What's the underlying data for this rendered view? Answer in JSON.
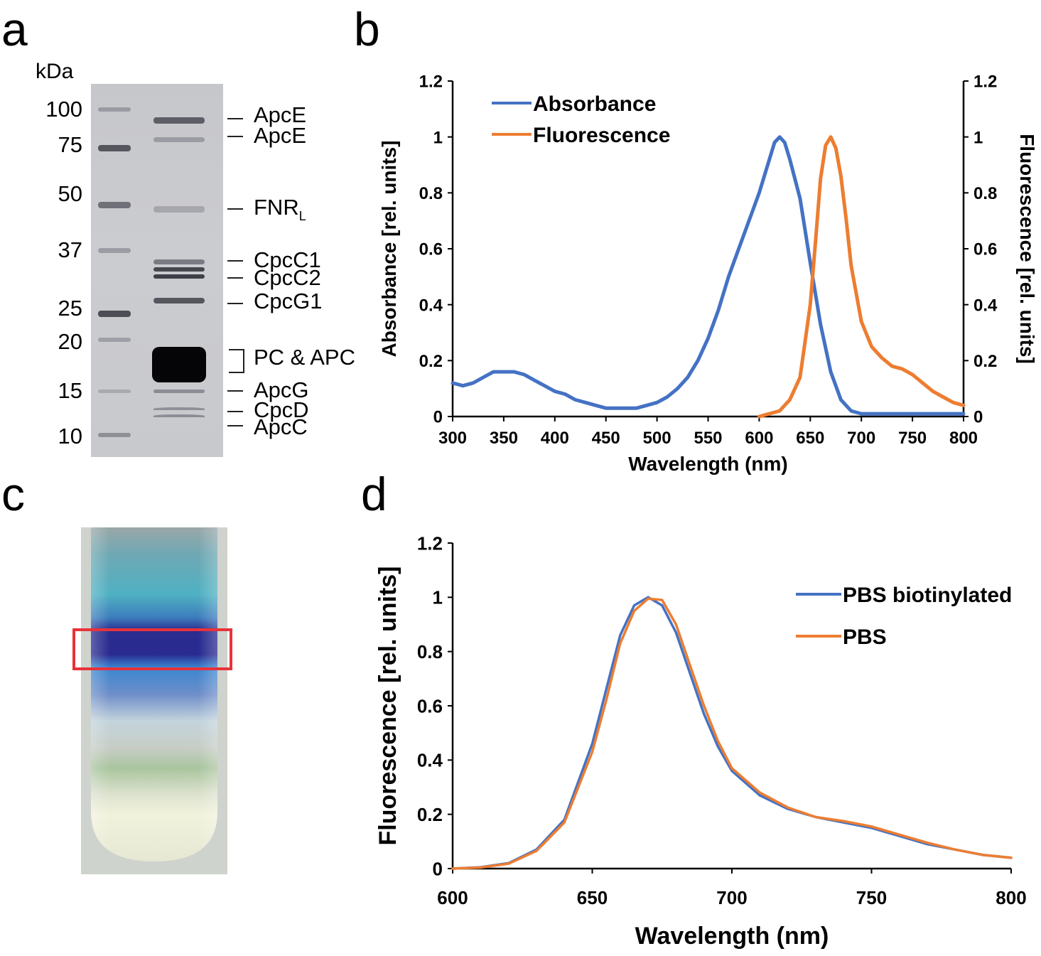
{
  "panels": {
    "a": {
      "letter": "a",
      "unit": "kDa",
      "markers": [
        "100",
        "75",
        "50",
        "37",
        "25",
        "20",
        "15",
        "10"
      ],
      "bands": [
        "ApcE",
        "ApcE",
        "FNR",
        "CpcC1",
        "CpcC2",
        "CpcG1",
        "PC & APC",
        "ApcG",
        "CpcD",
        "ApcC"
      ],
      "band_subscript": "L"
    },
    "b": {
      "letter": "b"
    },
    "c": {
      "letter": "c",
      "highlight_color": "#e8323a"
    },
    "d": {
      "letter": "d"
    }
  },
  "colors": {
    "blue": "#4472c4",
    "orange": "#ed7d31"
  },
  "chart_data": [
    {
      "panel": "b",
      "type": "line",
      "xlabel": "Wavelength (nm)",
      "ylabel": "Absorbance [rel. units]",
      "y2label": "Fluorescence [rel. units]",
      "xlim": [
        300,
        800
      ],
      "ylim": [
        0,
        1.2
      ],
      "y2lim": [
        0,
        1.2
      ],
      "xticks": [
        300,
        350,
        400,
        450,
        500,
        550,
        600,
        650,
        700,
        750,
        800
      ],
      "yticks": [
        "0",
        "0.2",
        "0.4",
        "0.6",
        "0.8",
        "1",
        "1.2"
      ],
      "legend_position": "top-left",
      "series": [
        {
          "name": "Absorbance",
          "color": "#4472c4",
          "x": [
            300,
            310,
            320,
            330,
            340,
            350,
            360,
            370,
            380,
            390,
            400,
            410,
            420,
            430,
            440,
            450,
            460,
            470,
            480,
            490,
            500,
            510,
            520,
            530,
            540,
            550,
            560,
            570,
            580,
            590,
            600,
            610,
            615,
            620,
            625,
            630,
            640,
            650,
            660,
            670,
            680,
            690,
            700,
            720,
            740,
            760,
            780,
            800
          ],
          "y": [
            0.12,
            0.11,
            0.12,
            0.14,
            0.16,
            0.16,
            0.16,
            0.15,
            0.13,
            0.11,
            0.09,
            0.08,
            0.06,
            0.05,
            0.04,
            0.03,
            0.03,
            0.03,
            0.03,
            0.04,
            0.05,
            0.07,
            0.1,
            0.14,
            0.2,
            0.28,
            0.38,
            0.5,
            0.6,
            0.7,
            0.8,
            0.92,
            0.98,
            1.0,
            0.98,
            0.92,
            0.78,
            0.55,
            0.33,
            0.16,
            0.06,
            0.02,
            0.01,
            0.01,
            0.01,
            0.01,
            0.01,
            0.01
          ]
        },
        {
          "name": "Fluorescence",
          "color": "#ed7d31",
          "x": [
            600,
            610,
            620,
            630,
            640,
            650,
            655,
            660,
            665,
            670,
            675,
            680,
            685,
            690,
            700,
            710,
            720,
            730,
            740,
            750,
            760,
            770,
            780,
            790,
            800
          ],
          "y": [
            0.0,
            0.01,
            0.02,
            0.06,
            0.14,
            0.4,
            0.62,
            0.85,
            0.97,
            1.0,
            0.96,
            0.86,
            0.71,
            0.54,
            0.34,
            0.25,
            0.21,
            0.18,
            0.17,
            0.15,
            0.12,
            0.09,
            0.07,
            0.05,
            0.04
          ]
        }
      ]
    },
    {
      "panel": "d",
      "type": "line",
      "xlabel": "Wavelength (nm)",
      "ylabel": "Fluorescence [rel. units]",
      "xlim": [
        600,
        800
      ],
      "ylim": [
        0,
        1.2
      ],
      "xticks": [
        600,
        650,
        700,
        750,
        800
      ],
      "yticks": [
        "0",
        "0.2",
        "0.4",
        "0.6",
        "0.8",
        "1",
        "1.2"
      ],
      "legend_position": "top-right",
      "series": [
        {
          "name": "PBS biotinylated",
          "color": "#4472c4",
          "x": [
            600,
            610,
            620,
            630,
            640,
            650,
            655,
            660,
            665,
            670,
            675,
            680,
            685,
            690,
            695,
            700,
            710,
            720,
            730,
            740,
            750,
            760,
            770,
            780,
            790,
            800
          ],
          "y": [
            0.0,
            0.005,
            0.02,
            0.07,
            0.18,
            0.46,
            0.66,
            0.86,
            0.97,
            1.0,
            0.97,
            0.87,
            0.72,
            0.57,
            0.45,
            0.36,
            0.27,
            0.22,
            0.19,
            0.17,
            0.15,
            0.12,
            0.09,
            0.07,
            0.05,
            0.04
          ]
        },
        {
          "name": "PBS",
          "color": "#ed7d31",
          "x": [
            600,
            610,
            620,
            630,
            640,
            650,
            655,
            660,
            665,
            670,
            675,
            680,
            685,
            690,
            695,
            700,
            710,
            720,
            730,
            740,
            750,
            760,
            770,
            780,
            790,
            800
          ],
          "y": [
            0.0,
            0.004,
            0.018,
            0.065,
            0.17,
            0.43,
            0.62,
            0.83,
            0.95,
            0.995,
            0.99,
            0.9,
            0.75,
            0.6,
            0.47,
            0.37,
            0.28,
            0.225,
            0.19,
            0.175,
            0.155,
            0.125,
            0.095,
            0.07,
            0.05,
            0.04
          ]
        }
      ]
    }
  ]
}
